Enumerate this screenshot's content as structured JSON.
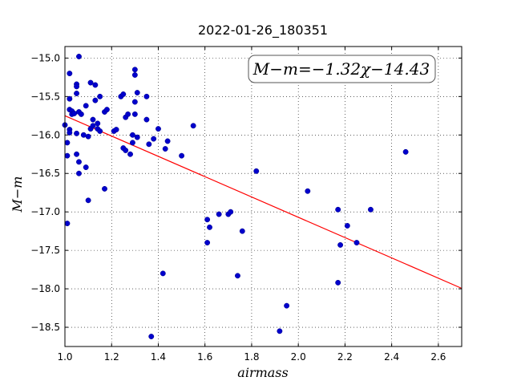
{
  "chart_data": {
    "type": "scatter",
    "title": "2022-01-26_180351",
    "xlabel": "airmass",
    "ylabel": "M−m",
    "xlim": [
      1.0,
      2.7
    ],
    "ylim": [
      -18.75,
      -14.85
    ],
    "y_inverted": true,
    "grid": true,
    "xticks": [
      "1.0",
      "1.2",
      "1.4",
      "1.6",
      "1.8",
      "2.0",
      "2.2",
      "2.4",
      "2.6"
    ],
    "yticks": [
      "−15.0",
      "−15.5",
      "−16.0",
      "−16.5",
      "−17.0",
      "−17.5",
      "−18.0",
      "−18.5"
    ],
    "fit": {
      "label": "M−m=−1.32χ−14.43",
      "slope": -1.32,
      "intercept": -14.43,
      "color": "#ff0000"
    },
    "point_color": "#0000cc",
    "x": [
      1.0,
      1.01,
      1.01,
      1.01,
      1.02,
      1.02,
      1.02,
      1.02,
      1.02,
      1.03,
      1.03,
      1.04,
      1.05,
      1.05,
      1.05,
      1.05,
      1.05,
      1.06,
      1.06,
      1.06,
      1.06,
      1.07,
      1.08,
      1.09,
      1.09,
      1.1,
      1.1,
      1.11,
      1.11,
      1.12,
      1.12,
      1.13,
      1.13,
      1.14,
      1.14,
      1.15,
      1.15,
      1.17,
      1.17,
      1.18,
      1.21,
      1.22,
      1.24,
      1.25,
      1.25,
      1.26,
      1.26,
      1.27,
      1.28,
      1.29,
      1.29,
      1.3,
      1.3,
      1.3,
      1.3,
      1.31,
      1.31,
      1.35,
      1.35,
      1.36,
      1.37,
      1.38,
      1.4,
      1.42,
      1.43,
      1.44,
      1.5,
      1.55,
      1.61,
      1.61,
      1.62,
      1.66,
      1.7,
      1.71,
      1.74,
      1.76,
      1.82,
      1.92,
      1.95,
      2.04,
      2.17,
      2.17,
      2.18,
      2.21,
      2.25,
      2.31,
      2.46
    ],
    "y": [
      -15.87,
      -17.15,
      -16.1,
      -16.27,
      -15.2,
      -15.53,
      -15.67,
      -15.93,
      -15.97,
      -15.69,
      -15.73,
      -15.72,
      -15.34,
      -15.37,
      -15.46,
      -15.98,
      -16.25,
      -14.98,
      -15.7,
      -16.35,
      -16.5,
      -15.73,
      -16.0,
      -15.62,
      -16.42,
      -16.02,
      -16.85,
      -15.32,
      -15.92,
      -15.8,
      -15.88,
      -15.35,
      -15.55,
      -15.85,
      -15.92,
      -15.5,
      -15.95,
      -15.7,
      -16.7,
      -15.67,
      -15.95,
      -15.93,
      -15.5,
      -15.47,
      -16.17,
      -16.2,
      -15.77,
      -15.73,
      -16.25,
      -16.0,
      -16.1,
      -15.15,
      -15.22,
      -15.57,
      -15.73,
      -15.45,
      -16.03,
      -15.8,
      -15.5,
      -16.12,
      -18.62,
      -16.05,
      -15.92,
      -17.8,
      -16.18,
      -16.08,
      -16.27,
      -15.88,
      -17.4,
      -17.1,
      -17.2,
      -17.03,
      -17.03,
      -17.0,
      -17.83,
      -17.25,
      -16.47,
      -18.55,
      -18.22,
      -16.73,
      -16.97,
      -17.92,
      -17.43,
      -17.18,
      -17.4,
      -16.97,
      -16.22
    ]
  }
}
